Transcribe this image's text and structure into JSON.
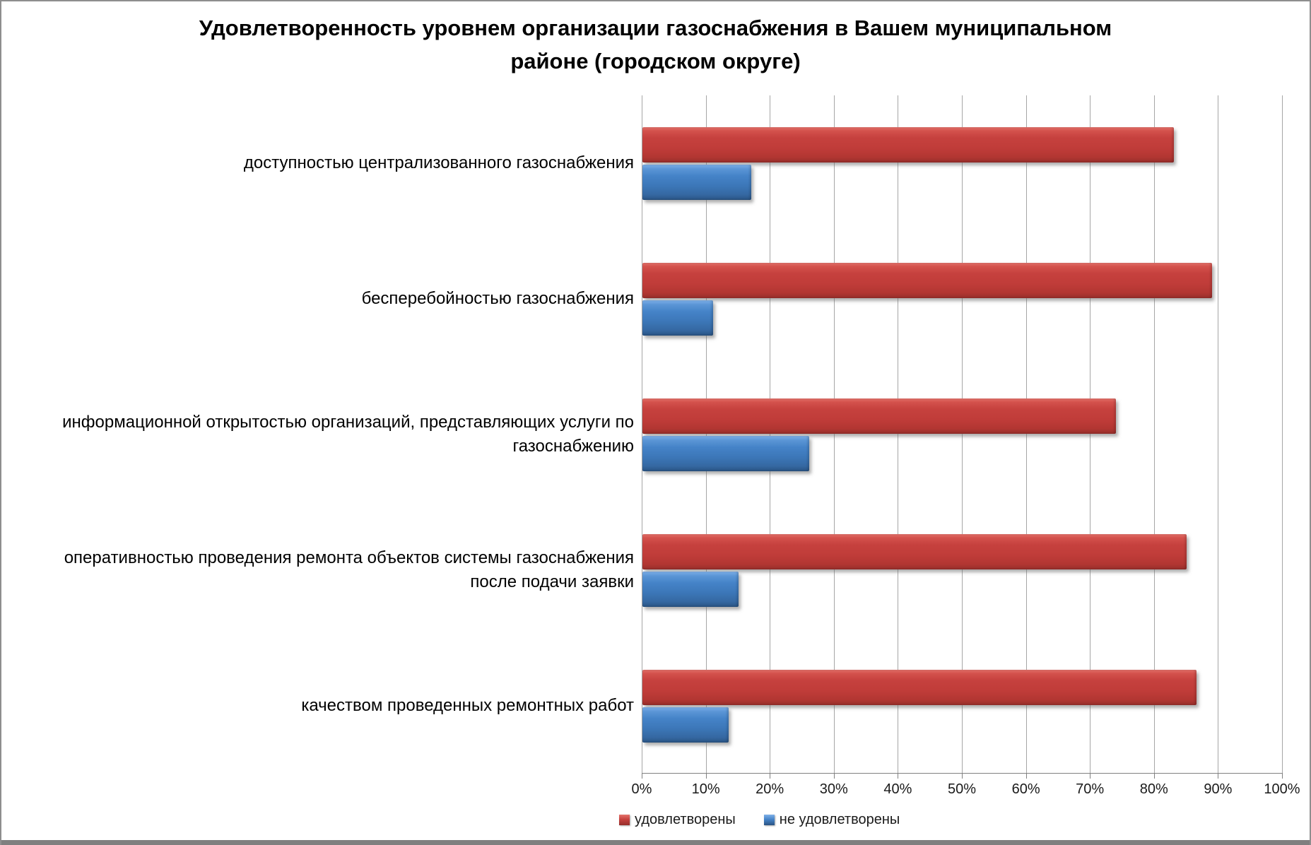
{
  "chart_data": {
    "type": "bar",
    "orientation": "horizontal",
    "title": "Удовлетворенность уровнем организации газоснабжения в Вашем муниципальном районе (городском округе)",
    "categories": [
      "доступностью централизованного газоснабжения",
      "бесперебойностью газоснабжения",
      "информационной открытостью организаций, представляющих услуги по газоснабжению",
      "оперативностью проведения ремонта объектов системы газоснабжения после подачи заявки",
      "качеством проведенных ремонтных работ"
    ],
    "series": [
      {
        "name": "удовлетворены",
        "color": "#C03C39",
        "values": [
          83,
          89,
          74,
          85,
          86.5
        ]
      },
      {
        "name": "не удовлетворены",
        "color": "#3C77B8",
        "values": [
          17,
          11,
          26,
          15,
          13.5
        ]
      }
    ],
    "x_axis": {
      "min": 0,
      "max": 100,
      "ticks": [
        "0%",
        "10%",
        "20%",
        "30%",
        "40%",
        "50%",
        "60%",
        "70%",
        "80%",
        "90%",
        "100%"
      ],
      "grid": true
    },
    "legend_position": "bottom"
  },
  "colors": {
    "bar_satisfied": "#C03C39",
    "bar_not_satisfied": "#3C77B8",
    "gridline": "#A6A6A6",
    "axis": "#808080",
    "frame_border": "#8E8E8E",
    "bottom_strip": "#7F7F7F"
  }
}
